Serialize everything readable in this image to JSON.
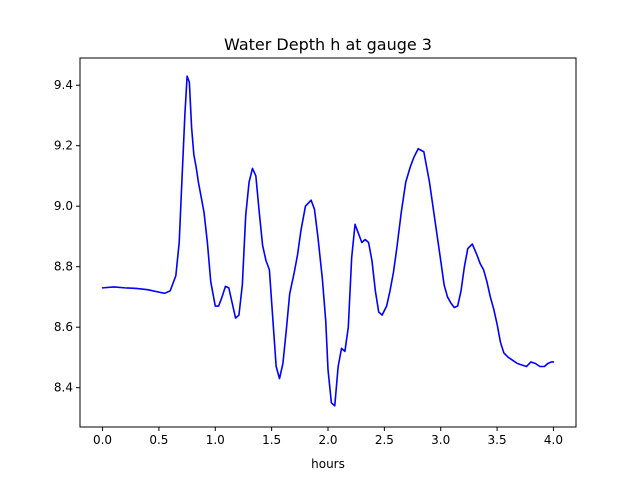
{
  "chart_data": {
    "type": "line",
    "title": "Water Depth h at gauge 3",
    "xlabel": "hours",
    "ylabel": "",
    "xlim": [
      -0.2,
      4.2
    ],
    "ylim": [
      8.27,
      9.49
    ],
    "x_ticks": [
      0.0,
      0.5,
      1.0,
      1.5,
      2.0,
      2.5,
      3.0,
      3.5,
      4.0
    ],
    "x_tick_labels": [
      "0.0",
      "0.5",
      "1.0",
      "1.5",
      "2.0",
      "2.5",
      "3.0",
      "3.5",
      "4.0"
    ],
    "y_ticks": [
      8.4,
      8.6,
      8.8,
      9.0,
      9.2,
      9.4
    ],
    "y_tick_labels": [
      "8.4",
      "8.6",
      "8.8",
      "9.0",
      "9.2",
      "9.4"
    ],
    "grid": false,
    "series": [
      {
        "color": "#0000ff",
        "x": [
          0.0,
          0.1,
          0.2,
          0.3,
          0.4,
          0.5,
          0.55,
          0.6,
          0.65,
          0.68,
          0.7,
          0.73,
          0.75,
          0.77,
          0.79,
          0.81,
          0.83,
          0.85,
          0.88,
          0.9,
          0.93,
          0.96,
          1.0,
          1.03,
          1.06,
          1.09,
          1.12,
          1.15,
          1.18,
          1.21,
          1.24,
          1.27,
          1.3,
          1.33,
          1.36,
          1.39,
          1.42,
          1.45,
          1.48,
          1.51,
          1.54,
          1.57,
          1.6,
          1.63,
          1.66,
          1.7,
          1.73,
          1.76,
          1.8,
          1.85,
          1.88,
          1.91,
          1.95,
          1.98,
          2.0,
          2.03,
          2.06,
          2.09,
          2.12,
          2.15,
          2.18,
          2.21,
          2.24,
          2.27,
          2.3,
          2.33,
          2.36,
          2.39,
          2.42,
          2.45,
          2.48,
          2.52,
          2.55,
          2.58,
          2.61,
          2.65,
          2.69,
          2.73,
          2.76,
          2.8,
          2.85,
          2.9,
          2.95,
          3.0,
          3.03,
          3.06,
          3.09,
          3.12,
          3.15,
          3.18,
          3.21,
          3.24,
          3.28,
          3.32,
          3.35,
          3.38,
          3.41,
          3.44,
          3.47,
          3.5,
          3.53,
          3.56,
          3.6,
          3.64,
          3.68,
          3.72,
          3.76,
          3.8,
          3.84,
          3.88,
          3.92,
          3.95,
          3.98,
          4.0
        ],
        "y": [
          8.73,
          8.733,
          8.73,
          8.728,
          8.724,
          8.716,
          8.712,
          8.72,
          8.77,
          8.88,
          9.05,
          9.3,
          9.43,
          9.41,
          9.26,
          9.17,
          9.13,
          9.08,
          9.02,
          8.98,
          8.88,
          8.75,
          8.67,
          8.67,
          8.7,
          8.735,
          8.73,
          8.68,
          8.63,
          8.64,
          8.74,
          8.97,
          9.08,
          9.125,
          9.1,
          8.98,
          8.87,
          8.82,
          8.79,
          8.63,
          8.47,
          8.43,
          8.48,
          8.59,
          8.71,
          8.78,
          8.84,
          8.92,
          9.0,
          9.02,
          8.99,
          8.9,
          8.76,
          8.62,
          8.46,
          8.35,
          8.34,
          8.47,
          8.53,
          8.52,
          8.6,
          8.83,
          8.94,
          8.91,
          8.88,
          8.89,
          8.88,
          8.82,
          8.72,
          8.65,
          8.64,
          8.67,
          8.72,
          8.78,
          8.86,
          8.98,
          9.08,
          9.13,
          9.16,
          9.19,
          9.18,
          9.08,
          8.95,
          8.82,
          8.74,
          8.7,
          8.68,
          8.665,
          8.67,
          8.72,
          8.8,
          8.86,
          8.875,
          8.84,
          8.81,
          8.79,
          8.75,
          8.7,
          8.66,
          8.61,
          8.55,
          8.515,
          8.5,
          8.49,
          8.48,
          8.475,
          8.47,
          8.485,
          8.48,
          8.47,
          8.47,
          8.48,
          8.485,
          8.485
        ]
      }
    ]
  }
}
